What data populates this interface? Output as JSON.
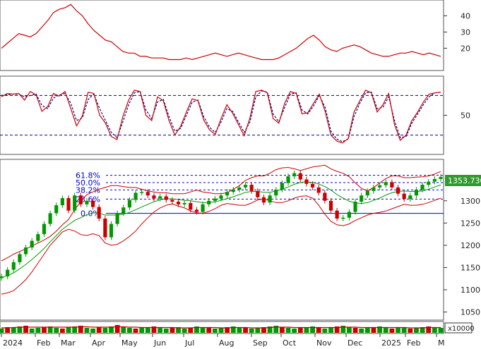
{
  "colors": {
    "adx": "#cc0000",
    "stoch_k": "#cc0000",
    "stoch_d": "#000088",
    "bollinger": "#cc0000",
    "bollinger_mid": "#009900",
    "candle_up": "#009900",
    "candle_down": "#cc0000",
    "fibonacci": "#0000cc",
    "price_tag_bg": "#2e9b2e",
    "volume_up": "#009900",
    "volume_down": "#cc0000",
    "volume_ma": "#cc0000",
    "panel_border": "#555555"
  },
  "chart_data": [
    {
      "panel": "adx",
      "type": "line",
      "ytick_labels": [
        "40",
        "30",
        "20"
      ],
      "yticks": [
        40,
        30,
        20
      ],
      "ylim": [
        8,
        48
      ],
      "values": [
        20,
        23,
        26,
        29,
        28,
        27,
        29,
        33,
        37,
        42,
        44,
        45,
        47,
        43,
        40,
        35,
        31,
        28,
        25,
        24,
        21,
        18,
        17,
        17,
        15,
        15,
        14,
        14,
        14,
        13,
        13,
        13,
        14,
        13,
        14,
        15,
        16,
        17,
        16,
        15,
        16,
        17,
        16,
        15,
        14,
        13,
        13,
        13,
        14,
        16,
        18,
        20,
        23,
        26,
        28,
        25,
        21,
        19,
        18,
        20,
        21,
        22,
        21,
        19,
        17,
        16,
        15,
        15,
        16,
        17,
        17,
        18,
        17,
        16,
        17,
        16,
        15
      ]
    },
    {
      "panel": "stochastic",
      "type": "line",
      "ytick_labels": [
        "50"
      ],
      "yticks": [
        50
      ],
      "ylim": [
        -5,
        105
      ],
      "reference_lines": [
        80,
        20
      ],
      "series": [
        {
          "values": [
            78,
            83,
            82,
            83,
            73,
            86,
            81,
            56,
            63,
            83,
            79,
            86,
            60,
            34,
            49,
            85,
            83,
            50,
            38,
            18,
            13,
            48,
            73,
            88,
            86,
            50,
            42,
            78,
            72,
            42,
            20,
            33,
            55,
            75,
            72,
            43,
            28,
            21,
            45,
            66,
            53,
            36,
            19,
            46,
            86,
            88,
            84,
            45,
            38,
            68,
            86,
            83,
            52,
            54,
            68,
            82,
            56,
            20,
            11,
            8,
            15,
            55,
            72,
            88,
            84,
            55,
            66,
            83,
            36,
            12,
            20,
            42,
            55,
            70,
            82,
            84,
            85
          ]
        },
        {
          "values": [
            80,
            81,
            82,
            82,
            78,
            80,
            82,
            65,
            60,
            76,
            81,
            83,
            68,
            42,
            46,
            74,
            82,
            60,
            42,
            24,
            16,
            40,
            66,
            84,
            86,
            58,
            45,
            70,
            74,
            48,
            26,
            30,
            50,
            70,
            73,
            48,
            32,
            24,
            40,
            60,
            56,
            40,
            24,
            40,
            78,
            87,
            85,
            52,
            40,
            62,
            82,
            84,
            58,
            52,
            64,
            80,
            62,
            26,
            14,
            10,
            14,
            48,
            68,
            84,
            85,
            60,
            62,
            78,
            42,
            16,
            18,
            38,
            52,
            66,
            78,
            84,
            85
          ]
        }
      ]
    },
    {
      "panel": "price",
      "type": "line",
      "ytick_labels": [
        "1300",
        "1250",
        "1200",
        "1150",
        "1100",
        "1050"
      ],
      "yticks": [
        1300,
        1250,
        1200,
        1150,
        1100,
        1050
      ],
      "ylim": [
        1035,
        1390
      ],
      "last_value_label": "1353.730",
      "last_value": 1353.73,
      "fibonacci": {
        "labels": [
          "61.8%",
          "50.0%",
          "38.2%",
          "23.6%",
          "0.0%"
        ],
        "prices": [
          1357.4,
          1340.9,
          1324.4,
          1303.9,
          1271.8
        ]
      },
      "series": [
        {
          "values": [
            1130,
            1145,
            1162,
            1180,
            1195,
            1210,
            1225,
            1248,
            1272,
            1290,
            1306,
            1278,
            1312,
            1292,
            1300,
            1286,
            1260,
            1218,
            1248,
            1272,
            1285,
            1302,
            1318,
            1320,
            1312,
            1305,
            1310,
            1302,
            1298,
            1292,
            1295,
            1280,
            1275,
            1292,
            1300,
            1305,
            1312,
            1320,
            1325,
            1330,
            1336,
            1322,
            1308,
            1296,
            1312,
            1325,
            1340,
            1355,
            1362,
            1348,
            1338,
            1330,
            1318,
            1300,
            1278,
            1260,
            1262,
            1275,
            1298,
            1312,
            1322,
            1330,
            1335,
            1342,
            1330,
            1316,
            1304,
            1312,
            1325,
            1336,
            1343,
            1349,
            1353.73
          ]
        },
        {
          "values": [
            1127,
            1132,
            1138,
            1147,
            1157,
            1168,
            1180,
            1193,
            1208,
            1222,
            1236,
            1246,
            1256,
            1262,
            1269,
            1273,
            1272,
            1268,
            1268,
            1268,
            1270,
            1274,
            1280,
            1286,
            1292,
            1298,
            1302,
            1305,
            1304,
            1303,
            1301,
            1300,
            1298,
            1296,
            1296,
            1298,
            1301,
            1305,
            1309,
            1314,
            1319,
            1321,
            1321,
            1319,
            1319,
            1322,
            1326,
            1331,
            1337,
            1341,
            1343,
            1341,
            1338,
            1332,
            1324,
            1314,
            1306,
            1299,
            1295,
            1294,
            1296,
            1301,
            1306,
            1313,
            1318,
            1321,
            1322,
            1321,
            1321,
            1322,
            1326,
            1331,
            1336
          ]
        },
        {
          "values": [
            1090,
            1093,
            1098,
            1110,
            1123,
            1140,
            1160,
            1180,
            1200,
            1215,
            1230,
            1236,
            1232,
            1224,
            1222,
            1226,
            1222,
            1205,
            1200,
            1202,
            1210,
            1220,
            1232,
            1248,
            1262,
            1275,
            1284,
            1290,
            1293,
            1288,
            1284,
            1277,
            1273,
            1272,
            1276,
            1282,
            1290,
            1294,
            1292,
            1290,
            1290,
            1295,
            1302,
            1304,
            1300,
            1296,
            1296,
            1300,
            1306,
            1310,
            1311,
            1306,
            1290,
            1270,
            1254,
            1246,
            1244,
            1248,
            1256,
            1262,
            1268,
            1272,
            1274,
            1277,
            1282,
            1287,
            1292,
            1290,
            1290,
            1292,
            1296,
            1301,
            1306
          ]
        },
        {
          "values": [
            1165,
            1172,
            1180,
            1186,
            1192,
            1198,
            1205,
            1212,
            1220,
            1232,
            1246,
            1258,
            1280,
            1298,
            1314,
            1320,
            1326,
            1330,
            1334,
            1334,
            1332,
            1330,
            1330,
            1326,
            1322,
            1320,
            1318,
            1318,
            1316,
            1316,
            1316,
            1320,
            1324,
            1320,
            1318,
            1316,
            1316,
            1318,
            1326,
            1334,
            1346,
            1352,
            1356,
            1356,
            1362,
            1370,
            1374,
            1375,
            1372,
            1368,
            1372,
            1376,
            1378,
            1380,
            1372,
            1366,
            1362,
            1354,
            1340,
            1328,
            1322,
            1330,
            1340,
            1350,
            1356,
            1356,
            1352,
            1352,
            1353,
            1354,
            1356,
            1360,
            1366
          ]
        }
      ]
    },
    {
      "panel": "volume",
      "type": "bar",
      "ytick_labels": [
        "x10000"
      ],
      "values": [
        6,
        8,
        7,
        9,
        10,
        6,
        7,
        8,
        9,
        7,
        6,
        8,
        9,
        10,
        7,
        6,
        8,
        7,
        9,
        11,
        8,
        7,
        6,
        7,
        8,
        9,
        7,
        6,
        7,
        8,
        6,
        7,
        9,
        8,
        7,
        6,
        7,
        8,
        9,
        8,
        7,
        6,
        7,
        8,
        9,
        10,
        8,
        7,
        6,
        7,
        8,
        9,
        7,
        6,
        8,
        9,
        10,
        8,
        7,
        6,
        7,
        8,
        9,
        7,
        6,
        8,
        7,
        6,
        7,
        8,
        9,
        8,
        7
      ],
      "ma_values": [
        7,
        7,
        7.5,
        8,
        8,
        8,
        8,
        8,
        8,
        8,
        8,
        8,
        8,
        8.5,
        8.5,
        8,
        8,
        8,
        8,
        8.5,
        8.5,
        8,
        8,
        7.5,
        7.5,
        7.5,
        7.5,
        7.5,
        7.5,
        7,
        7,
        7,
        7.5,
        7.5,
        7.5,
        7.5,
        7,
        7,
        7.5,
        7.5,
        7.5,
        7,
        7,
        7,
        7.5,
        8,
        8,
        8,
        7.5,
        7.5,
        7.5,
        7.5,
        7.5,
        7.5,
        7.5,
        7.5,
        8,
        8,
        8,
        7.5,
        7.5,
        7.5,
        7.5,
        7.5,
        7.5,
        7.5,
        7.5,
        7,
        7,
        7,
        7.5,
        7.5,
        7.5
      ]
    }
  ],
  "xaxis": {
    "month_labels": [
      "2024",
      "Feb",
      "Mar",
      "Apr",
      "May",
      "Jun",
      "Jul",
      "Aug",
      "Sep",
      "Oct",
      "Nov",
      "Dec",
      "2025",
      "Feb",
      "M"
    ]
  }
}
